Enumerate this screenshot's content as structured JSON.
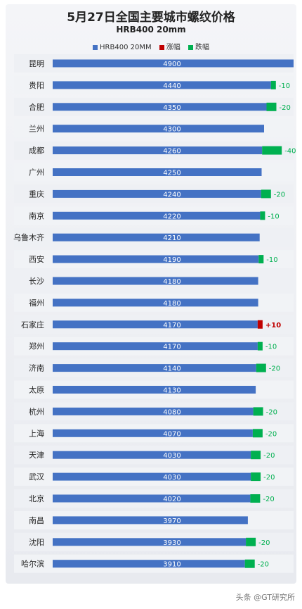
{
  "chart_data": {
    "type": "bar",
    "orientation": "horizontal",
    "title": "5月27日全国主要城市螺纹价格",
    "subtitle": "HRB400 20mm",
    "legend": [
      {
        "label": "HRB400 20MM",
        "color": "#4472c4"
      },
      {
        "label": "涨幅",
        "color": "#c00000"
      },
      {
        "label": "跌幅",
        "color": "#00b050"
      }
    ],
    "categories": [
      "昆明",
      "贵阳",
      "合肥",
      "兰州",
      "成都",
      "广州",
      "重庆",
      "南京",
      "乌鲁木齐",
      "西安",
      "长沙",
      "福州",
      "石家庄",
      "郑州",
      "济南",
      "太原",
      "杭州",
      "上海",
      "天津",
      "武汉",
      "北京",
      "南昌",
      "沈阳",
      "哈尔滨"
    ],
    "values": [
      4900,
      4440,
      4350,
      4300,
      4260,
      4250,
      4240,
      4220,
      4210,
      4190,
      4180,
      4180,
      4170,
      4170,
      4140,
      4130,
      4080,
      4070,
      4030,
      4030,
      4020,
      3970,
      3930,
      3910
    ],
    "changes": [
      0,
      -10,
      -20,
      0,
      -40,
      0,
      -20,
      -10,
      0,
      -10,
      0,
      0,
      10,
      -10,
      -20,
      0,
      -20,
      -20,
      -20,
      -20,
      -20,
      0,
      -20,
      -20
    ],
    "change_labels": [
      "",
      "-10",
      "-20",
      "",
      "-40",
      "",
      "-20",
      "-10",
      "",
      "-10",
      "",
      "",
      "+10",
      "-10",
      "-20",
      "",
      "-20",
      "-20",
      "-20",
      "-20",
      "-20",
      "",
      "-20",
      "-20"
    ],
    "colors": {
      "base": "#4472c4",
      "up": "#c00000",
      "down": "#00b050"
    }
  },
  "footer": "头条 @GT研究所"
}
